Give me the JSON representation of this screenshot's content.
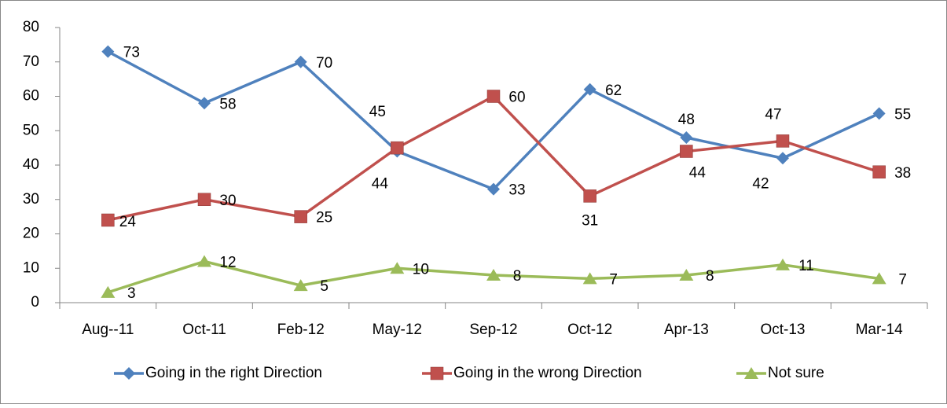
{
  "chart_data": {
    "type": "line",
    "categories": [
      "Aug--11",
      "Oct-11",
      "Feb-12",
      "May-12",
      "Sep-12",
      "Oct-12",
      "Apr-13",
      "Oct-13",
      "Mar-14"
    ],
    "series": [
      {
        "name": "Going in the right Direction",
        "color": "#4f81bd",
        "marker": "diamond",
        "values": [
          73,
          58,
          70,
          44,
          33,
          62,
          48,
          42,
          55
        ]
      },
      {
        "name": "Going in the wrong Direction",
        "color": "#c0504d",
        "marker": "square",
        "values": [
          24,
          30,
          25,
          45,
          60,
          31,
          44,
          47,
          38
        ]
      },
      {
        "name": "Not sure",
        "color": "#9bbb59",
        "marker": "triangle",
        "values": [
          3,
          12,
          5,
          10,
          8,
          7,
          8,
          11,
          7
        ]
      }
    ],
    "ylim": [
      0,
      80
    ],
    "yticks": [
      0,
      10,
      20,
      30,
      40,
      50,
      60,
      70,
      80
    ],
    "grid": false,
    "legend": "bottom"
  }
}
